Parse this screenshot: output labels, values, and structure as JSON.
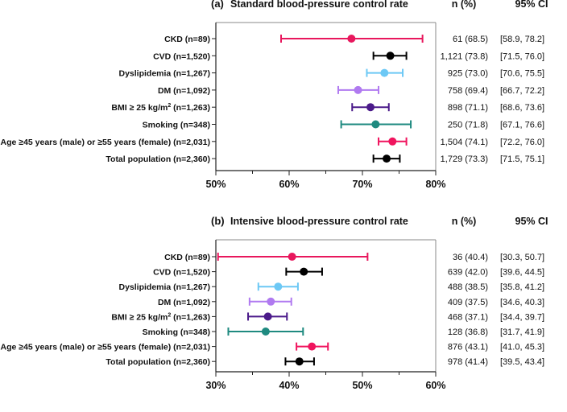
{
  "chart_data": [
    {
      "type": "forest",
      "panel": "(a)",
      "title": "Standard blood-pressure control rate",
      "col_n_header": "n (%)",
      "col_ci_header": "95% CI",
      "xlim": [
        50,
        80
      ],
      "xticks": [
        "50%",
        "60%",
        "70%",
        "80%"
      ],
      "tick_values": [
        50,
        60,
        70,
        80
      ],
      "rows": [
        {
          "label": "CKD (n=89)",
          "sup": "",
          "label_after": "",
          "est": 68.5,
          "lo": 58.9,
          "hi": 78.2,
          "n_text": "61 (68.5)",
          "ci_text": "[58.9, 78.2]",
          "color": "#e8175d"
        },
        {
          "label": "CVD (n=1,520)",
          "sup": "",
          "label_after": "",
          "est": 73.8,
          "lo": 71.5,
          "hi": 76.0,
          "n_text": "1,121 (73.8)",
          "ci_text": "[71.5, 76.0]",
          "color": "#000000"
        },
        {
          "label": "Dyslipidemia  (n=1,267)",
          "sup": "",
          "label_after": "",
          "est": 73.0,
          "lo": 70.6,
          "hi": 75.5,
          "n_text": "925 (73.0)",
          "ci_text": "[70.6, 75.5]",
          "color": "#6cc8f5"
        },
        {
          "label": "DM (n=1,092)",
          "sup": "",
          "label_after": "",
          "est": 69.4,
          "lo": 66.7,
          "hi": 72.2,
          "n_text": "758 (69.4)",
          "ci_text": "[66.7, 72.2]",
          "color": "#b07af0"
        },
        {
          "label": "BMI ≥ 25 kg/m",
          "sup": "2",
          "label_after": "  (n=1,263)",
          "est": 71.1,
          "lo": 68.6,
          "hi": 73.6,
          "n_text": "898 (71.1)",
          "ci_text": "[68.6, 73.6]",
          "color": "#4b1a8a"
        },
        {
          "label": "Smoking (n=348)",
          "sup": "",
          "label_after": "",
          "est": 71.8,
          "lo": 67.1,
          "hi": 76.6,
          "n_text": "250 (71.8)",
          "ci_text": "[67.1, 76.6]",
          "color": "#1f8a80"
        },
        {
          "label": "Age ≥45 years (male) or ≥55 years (female) (n=2,031)",
          "sup": "",
          "label_after": "",
          "est": 74.1,
          "lo": 72.2,
          "hi": 76.0,
          "n_text": "1,504 (74.1)",
          "ci_text": "[72.2, 76.0]",
          "color": "#f0145e"
        },
        {
          "label": "Total population (n=2,360)",
          "sup": "",
          "label_after": "",
          "est": 73.3,
          "lo": 71.5,
          "hi": 75.1,
          "n_text": "1,729 (73.3)",
          "ci_text": "[71.5, 75.1]",
          "color": "#000000"
        }
      ]
    },
    {
      "type": "forest",
      "panel": "(b)",
      "title": "Intensive blood-pressure control rate",
      "col_n_header": "n (%)",
      "col_ci_header": "95% CI",
      "xlim": [
        30,
        60
      ],
      "xticks": [
        "30%",
        "40%",
        "50%",
        "60%"
      ],
      "tick_values": [
        30,
        40,
        50,
        60
      ],
      "rows": [
        {
          "label": "CKD (n=89)",
          "sup": "",
          "label_after": "",
          "est": 40.4,
          "lo": 30.3,
          "hi": 50.7,
          "n_text": "36 (40.4)",
          "ci_text": "[30.3, 50.7]",
          "color": "#e8175d"
        },
        {
          "label": "CVD (n=1,520)",
          "sup": "",
          "label_after": "",
          "est": 42.0,
          "lo": 39.6,
          "hi": 44.5,
          "n_text": "639 (42.0)",
          "ci_text": "[39.6, 44.5]",
          "color": "#000000"
        },
        {
          "label": "Dyslipidemia  (n=1,267)",
          "sup": "",
          "label_after": "",
          "est": 38.5,
          "lo": 35.8,
          "hi": 41.2,
          "n_text": "488 (38.5)",
          "ci_text": "[35.8, 41.2]",
          "color": "#6cc8f5"
        },
        {
          "label": "DM (n=1,092)",
          "sup": "",
          "label_after": "",
          "est": 37.5,
          "lo": 34.6,
          "hi": 40.3,
          "n_text": "409 (37.5)",
          "ci_text": "[34.6, 40.3]",
          "color": "#b07af0"
        },
        {
          "label": "BMI ≥ 25 kg/m",
          "sup": "2",
          "label_after": "  (n=1,263)",
          "est": 37.1,
          "lo": 34.4,
          "hi": 39.7,
          "n_text": "468 (37.1)",
          "ci_text": "[34.4, 39.7]",
          "color": "#4b1a8a"
        },
        {
          "label": "Smoking (n=348)",
          "sup": "",
          "label_after": "",
          "est": 36.8,
          "lo": 31.7,
          "hi": 41.9,
          "n_text": "128 (36.8)",
          "ci_text": "[31.7, 41.9]",
          "color": "#1f8a80"
        },
        {
          "label": "Age ≥45 years (male) or ≥55 years (female) (n=2,031)",
          "sup": "",
          "label_after": "",
          "est": 43.1,
          "lo": 41.0,
          "hi": 45.3,
          "n_text": "876 (43.1)",
          "ci_text": "[41.0, 45.3]",
          "color": "#f0145e"
        },
        {
          "label": "Total population (n=2,360)",
          "sup": "",
          "label_after": "",
          "est": 41.4,
          "lo": 39.5,
          "hi": 43.4,
          "n_text": "978 (41.4)",
          "ci_text": "[39.5, 43.4]",
          "color": "#000000"
        }
      ]
    }
  ]
}
